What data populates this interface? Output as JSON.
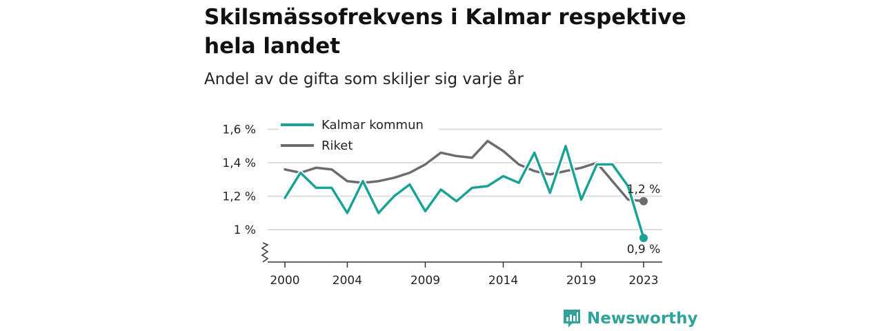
{
  "title": "Skilsmässofrekvens i Kalmar respektive hela landet",
  "subtitle": "Andel av de gifta som skiljer sig varje år",
  "brand": {
    "name": "Newsworthy",
    "color": "#2fa39a",
    "icon": "newsworthy-logo-icon"
  },
  "colors": {
    "kalmar": "#1aa394",
    "riket": "#6b6b70",
    "grid": "#dddddd",
    "axis": "#333333"
  },
  "chart_data": {
    "type": "line",
    "x": [
      2000,
      2001,
      2002,
      2003,
      2004,
      2005,
      2006,
      2007,
      2008,
      2009,
      2010,
      2011,
      2012,
      2013,
      2014,
      2015,
      2016,
      2017,
      2018,
      2019,
      2020,
      2021,
      2022,
      2023
    ],
    "series": [
      {
        "name": "Kalmar kommun",
        "values": [
          1.19,
          1.34,
          1.25,
          1.25,
          1.1,
          1.29,
          1.1,
          1.2,
          1.27,
          1.11,
          1.24,
          1.17,
          1.25,
          1.26,
          1.32,
          1.28,
          1.46,
          1.22,
          1.5,
          1.18,
          1.39,
          1.39,
          1.26,
          0.95
        ],
        "end_label": "0,9 %"
      },
      {
        "name": "Riket",
        "values": [
          1.36,
          1.34,
          1.37,
          1.36,
          1.29,
          1.28,
          1.29,
          1.31,
          1.34,
          1.39,
          1.46,
          1.44,
          1.43,
          1.53,
          1.47,
          1.39,
          1.35,
          1.33,
          1.35,
          1.37,
          1.4,
          1.29,
          1.18,
          1.17
        ],
        "end_label": "1,2 %"
      }
    ],
    "y_ticks": [
      {
        "value": 1.0,
        "label": "1 %"
      },
      {
        "value": 1.2,
        "label": "1,2 %"
      },
      {
        "value": 1.4,
        "label": "1,4 %"
      },
      {
        "value": 1.6,
        "label": "1,6 %"
      }
    ],
    "x_ticks": [
      {
        "value": 2000,
        "label": "2000"
      },
      {
        "value": 2004,
        "label": "2004"
      },
      {
        "value": 2009,
        "label": "2009"
      },
      {
        "value": 2014,
        "label": "2014"
      },
      {
        "value": 2019,
        "label": "2019"
      },
      {
        "value": 2023,
        "label": "2023"
      }
    ],
    "ylim": [
      0.8,
      1.6
    ],
    "xlim": [
      2000,
      2023
    ],
    "y_axis_break": true,
    "grid": true,
    "legend_position": "top-left"
  }
}
